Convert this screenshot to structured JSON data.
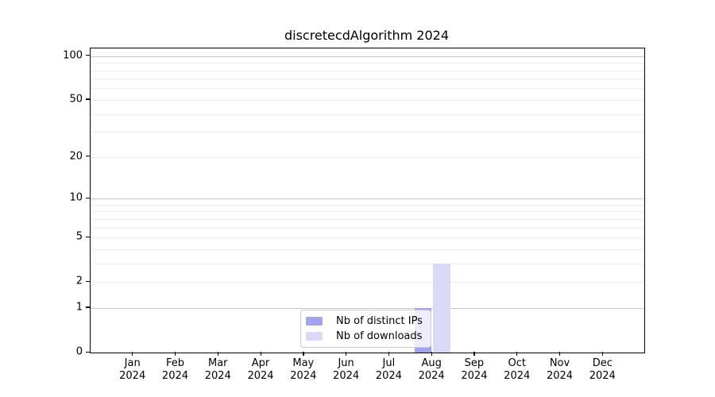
{
  "figure": {
    "title": "discretecdAlgorithm 2024"
  },
  "chart_data": {
    "type": "bar",
    "title": "discretecdAlgorithm 2024",
    "categories": [
      "Jan 2024",
      "Feb 2024",
      "Mar 2024",
      "Apr 2024",
      "May 2024",
      "Jun 2024",
      "Jul 2024",
      "Aug 2024",
      "Sep 2024",
      "Oct 2024",
      "Nov 2024",
      "Dec 2024"
    ],
    "x_tick_months": [
      "Jan",
      "Feb",
      "Mar",
      "Apr",
      "May",
      "Jun",
      "Jul",
      "Aug",
      "Sep",
      "Oct",
      "Nov",
      "Dec"
    ],
    "x_tick_year": "2024",
    "series": [
      {
        "name": "Nb of distinct IPs",
        "color": "#a2a2ef",
        "values": [
          0,
          0,
          0,
          0,
          0,
          0,
          0,
          1,
          0,
          0,
          0,
          0
        ]
      },
      {
        "name": "Nb of downloads",
        "color": "#dadaf8",
        "values": [
          0,
          0,
          0,
          0,
          0,
          0,
          0,
          3,
          0,
          0,
          0,
          0
        ]
      }
    ],
    "xlabel": "",
    "ylabel": "",
    "y_axis": {
      "scale": "log1p",
      "tick_values": [
        100,
        50,
        20,
        10,
        5,
        2,
        1,
        0
      ],
      "minor_grid_values": [
        2,
        3,
        4,
        5,
        6,
        7,
        8,
        9,
        20,
        30,
        40,
        50,
        60,
        70,
        80,
        90
      ],
      "major_grid_values": [
        1,
        10,
        100
      ],
      "ylim": [
        0,
        113
      ]
    },
    "grid": "horizontal",
    "legend": {
      "position": "lower-center-inside",
      "items": [
        "Nb of distinct IPs",
        "Nb of downloads"
      ]
    },
    "colors": {
      "distinct_ips_bar": "#a2a2ef",
      "downloads_bar": "#dadaf8",
      "minor_gridline": "#ececec",
      "major_gridline": "#c6c6c6",
      "axis_line": "#000000",
      "legend_border": "#cccccc",
      "text": "#000000"
    }
  }
}
